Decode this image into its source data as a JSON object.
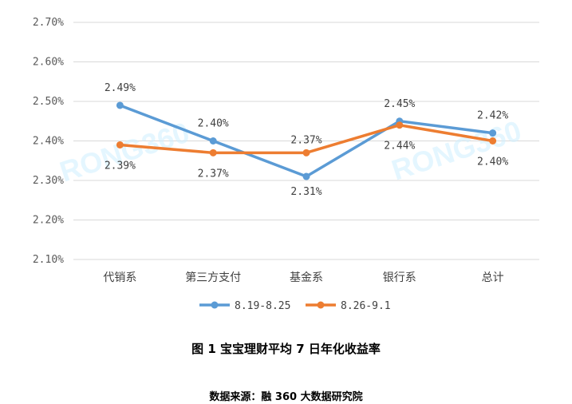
{
  "chart_data": {
    "type": "line",
    "categories": [
      "代销系",
      "第三方支付",
      "基金系",
      "银行系",
      "总计"
    ],
    "series": [
      {
        "name": "8.19-8.25",
        "values": [
          2.49,
          2.4,
          2.31,
          2.45,
          2.42
        ],
        "labels": [
          "2.49%",
          "2.40%",
          "2.31%",
          "2.45%",
          "2.42%"
        ],
        "color": "#5b9bd5"
      },
      {
        "name": "8.26-9.1",
        "values": [
          2.39,
          2.37,
          2.37,
          2.44,
          2.4
        ],
        "labels": [
          "2.39%",
          "2.37%",
          "2.37%",
          "2.44%",
          "2.40%"
        ],
        "color": "#ed7d31"
      }
    ],
    "ylim": [
      2.1,
      2.7
    ],
    "yticks": [
      2.1,
      2.2,
      2.3,
      2.4,
      2.5,
      2.6,
      2.7
    ],
    "ytick_labels": [
      "2.10%",
      "2.20%",
      "2.30%",
      "2.40%",
      "2.50%",
      "2.60%",
      "2.70%"
    ],
    "grid": true,
    "legend": "bottom",
    "title": "图 1 宝宝理财平均 7 日年化收益率",
    "source": "数据来源：融 360 大数据研究院",
    "watermark": "RONG360"
  }
}
